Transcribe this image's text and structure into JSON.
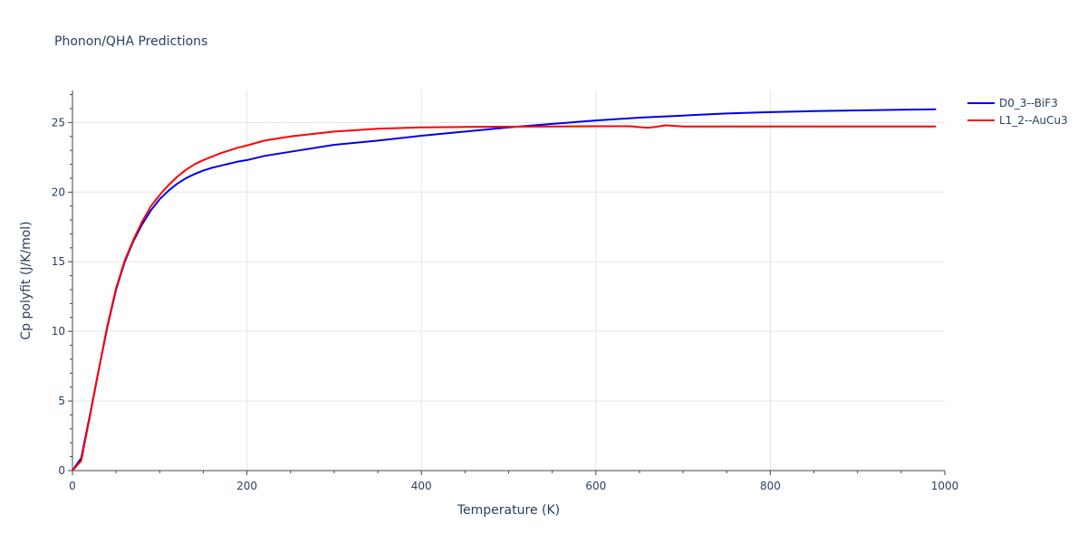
{
  "chart_data": {
    "type": "line",
    "title": "Phonon/QHA Predictions",
    "xlabel": "Temperature (K)",
    "ylabel": "Cp polyfit (J/K/mol)",
    "xlim": [
      0,
      1000
    ],
    "ylim": [
      0,
      27.3
    ],
    "xticks": [
      0,
      200,
      400,
      600,
      800,
      1000
    ],
    "yticks": [
      0,
      5,
      10,
      15,
      20,
      25
    ],
    "grid": true,
    "legend_position": "top-right",
    "series": [
      {
        "name": "D0_3--BiF3",
        "color": "#0000ee",
        "x": [
          0,
          10,
          20,
          30,
          40,
          50,
          60,
          70,
          80,
          90,
          100,
          110,
          120,
          130,
          140,
          150,
          160,
          170,
          180,
          190,
          200,
          220,
          250,
          300,
          350,
          400,
          450,
          500,
          550,
          600,
          650,
          700,
          750,
          800,
          850,
          900,
          950,
          990
        ],
        "y": [
          0,
          0.9,
          4.0,
          7.2,
          10.3,
          13.0,
          15.0,
          16.5,
          17.7,
          18.7,
          19.5,
          20.1,
          20.6,
          21.0,
          21.3,
          21.55,
          21.75,
          21.9,
          22.05,
          22.2,
          22.3,
          22.6,
          22.9,
          23.4,
          23.7,
          24.05,
          24.35,
          24.65,
          24.9,
          25.15,
          25.35,
          25.5,
          25.65,
          25.75,
          25.82,
          25.87,
          25.92,
          25.95
        ]
      },
      {
        "name": "L1_2--AuCu3",
        "color": "#ff0000",
        "x": [
          0,
          10,
          20,
          30,
          40,
          50,
          60,
          70,
          80,
          90,
          100,
          110,
          120,
          130,
          140,
          150,
          160,
          170,
          180,
          190,
          200,
          220,
          250,
          300,
          350,
          400,
          450,
          500,
          550,
          600,
          640,
          650,
          660,
          670,
          680,
          700,
          750,
          800,
          850,
          900,
          950,
          990
        ],
        "y": [
          0,
          0.7,
          3.9,
          7.2,
          10.4,
          13.1,
          15.1,
          16.6,
          17.9,
          19.0,
          19.8,
          20.5,
          21.1,
          21.6,
          22.0,
          22.3,
          22.55,
          22.8,
          23.0,
          23.2,
          23.35,
          23.7,
          24.0,
          24.35,
          24.55,
          24.65,
          24.68,
          24.7,
          24.72,
          24.73,
          24.73,
          24.67,
          24.63,
          24.7,
          24.8,
          24.72,
          24.72,
          24.72,
          24.72,
          24.72,
          24.72,
          24.72
        ]
      }
    ]
  }
}
